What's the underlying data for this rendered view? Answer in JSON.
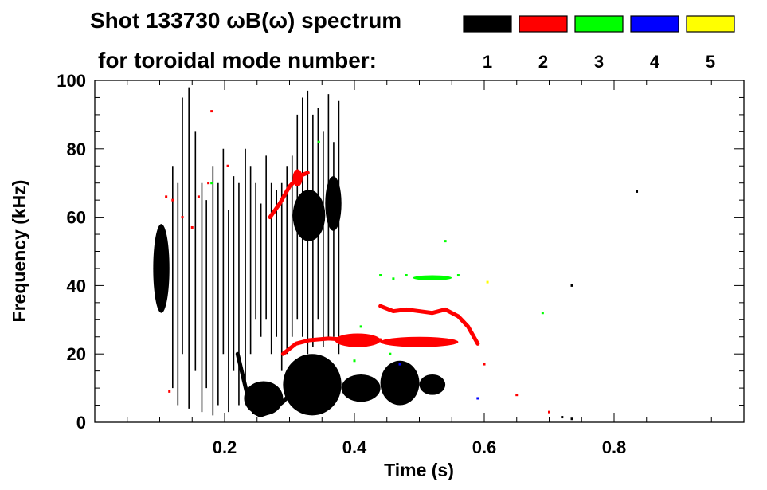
{
  "chart_data": {
    "type": "heatmap",
    "title": "Shot 133730 ωB(ω) spectrum",
    "legend_caption": "for toroidal mode number:",
    "xlabel": "Time (s)",
    "ylabel": "Frequency (kHz)",
    "xlim": [
      0.0,
      1.0
    ],
    "ylim": [
      0,
      100
    ],
    "x_ticks": [
      {
        "value": 0.2,
        "label": "0.2"
      },
      {
        "value": 0.4,
        "label": "0.4"
      },
      {
        "value": 0.6,
        "label": "0.6"
      },
      {
        "value": 0.8,
        "label": "0.8"
      }
    ],
    "y_ticks": [
      {
        "value": 0,
        "label": "0"
      },
      {
        "value": 20,
        "label": "20"
      },
      {
        "value": 40,
        "label": "40"
      },
      {
        "value": 60,
        "label": "60"
      },
      {
        "value": 80,
        "label": "80"
      },
      {
        "value": 100,
        "label": "100"
      }
    ],
    "legend": [
      {
        "label": "1",
        "color": "#000000"
      },
      {
        "label": "2",
        "color": "#ff0000"
      },
      {
        "label": "3",
        "color": "#00ff00"
      },
      {
        "label": "4",
        "color": "#0000ff"
      },
      {
        "label": "5",
        "color": "#ffff00"
      }
    ],
    "legend_placement": "top-right",
    "grid": false,
    "series": [
      {
        "label": "1",
        "color": "#000000",
        "blobs": [
          {
            "t0": 0.09,
            "t1": 0.115,
            "f0": 32,
            "f1": 58
          },
          {
            "t0": 0.095,
            "t1": 0.108,
            "f0": 38,
            "f1": 48
          },
          {
            "t0": 0.23,
            "t1": 0.29,
            "f0": 2,
            "f1": 12
          },
          {
            "t0": 0.29,
            "t1": 0.38,
            "f0": 2,
            "f1": 20
          },
          {
            "t0": 0.38,
            "t1": 0.44,
            "f0": 6,
            "f1": 14
          },
          {
            "t0": 0.44,
            "t1": 0.5,
            "f0": 5,
            "f1": 18
          },
          {
            "t0": 0.5,
            "t1": 0.54,
            "f0": 8,
            "f1": 14
          },
          {
            "t0": 0.305,
            "t1": 0.355,
            "f0": 53,
            "f1": 68
          },
          {
            "t0": 0.355,
            "t1": 0.38,
            "f0": 56,
            "f1": 72
          }
        ],
        "lines": [
          {
            "t": [
              0.22,
              0.235,
              0.245,
              0.255,
              0.27,
              0.29,
              0.31
            ],
            "f": [
              20,
              8,
              3,
              2,
              3,
              6,
              10
            ]
          }
        ],
        "streaks": [
          {
            "t": 0.12,
            "f0": 10,
            "f1": 75
          },
          {
            "t": 0.128,
            "f0": 5,
            "f1": 70
          },
          {
            "t": 0.135,
            "f0": 20,
            "f1": 95
          },
          {
            "t": 0.145,
            "f0": 4,
            "f1": 98
          },
          {
            "t": 0.155,
            "f0": 15,
            "f1": 85
          },
          {
            "t": 0.165,
            "f0": 3,
            "f1": 70
          },
          {
            "t": 0.172,
            "f0": 10,
            "f1": 65
          },
          {
            "t": 0.182,
            "f0": 2,
            "f1": 75
          },
          {
            "t": 0.19,
            "f0": 5,
            "f1": 70
          },
          {
            "t": 0.198,
            "f0": 20,
            "f1": 80
          },
          {
            "t": 0.206,
            "f0": 3,
            "f1": 62
          },
          {
            "t": 0.214,
            "f0": 15,
            "f1": 72
          },
          {
            "t": 0.222,
            "f0": 5,
            "f1": 70
          },
          {
            "t": 0.232,
            "f0": 10,
            "f1": 80
          },
          {
            "t": 0.24,
            "f0": 20,
            "f1": 75
          },
          {
            "t": 0.248,
            "f0": 30,
            "f1": 70
          },
          {
            "t": 0.256,
            "f0": 25,
            "f1": 64
          },
          {
            "t": 0.264,
            "f0": 30,
            "f1": 78
          },
          {
            "t": 0.272,
            "f0": 20,
            "f1": 70
          },
          {
            "t": 0.28,
            "f0": 25,
            "f1": 68
          },
          {
            "t": 0.288,
            "f0": 15,
            "f1": 70
          },
          {
            "t": 0.296,
            "f0": 20,
            "f1": 75
          },
          {
            "t": 0.304,
            "f0": 25,
            "f1": 78
          },
          {
            "t": 0.312,
            "f0": 30,
            "f1": 90
          },
          {
            "t": 0.32,
            "f0": 25,
            "f1": 95
          },
          {
            "t": 0.328,
            "f0": 20,
            "f1": 97
          },
          {
            "t": 0.336,
            "f0": 22,
            "f1": 90
          },
          {
            "t": 0.344,
            "f0": 30,
            "f1": 92
          },
          {
            "t": 0.352,
            "f0": 22,
            "f1": 85
          },
          {
            "t": 0.36,
            "f0": 24,
            "f1": 96
          },
          {
            "t": 0.368,
            "f0": 25,
            "f1": 82
          },
          {
            "t": 0.376,
            "f0": 20,
            "f1": 94
          }
        ],
        "specks": [
          {
            "t": 0.72,
            "f": 1.5
          },
          {
            "t": 0.735,
            "f": 1
          },
          {
            "t": 0.835,
            "f": 67.5
          },
          {
            "t": 0.735,
            "f": 40
          }
        ]
      },
      {
        "label": "2",
        "color": "#ff0000",
        "blobs": [
          {
            "t0": 0.305,
            "t1": 0.32,
            "f0": 69,
            "f1": 74
          },
          {
            "t0": 0.37,
            "t1": 0.44,
            "f0": 22,
            "f1": 26
          },
          {
            "t0": 0.44,
            "t1": 0.56,
            "f0": 22,
            "f1": 25
          }
        ],
        "lines": [
          {
            "t": [
              0.27,
              0.285,
              0.3,
              0.315,
              0.328
            ],
            "f": [
              60,
              64,
              69,
              72,
              73
            ]
          },
          {
            "t": [
              0.44,
              0.46,
              0.48,
              0.5,
              0.52,
              0.54,
              0.56,
              0.575,
              0.59
            ],
            "f": [
              34,
              32.5,
              33,
              32.5,
              32,
              33,
              31,
              28,
              23
            ]
          },
          {
            "t": [
              0.29,
              0.31,
              0.33,
              0.36,
              0.4,
              0.44
            ],
            "f": [
              20,
              23,
              24,
              24.5,
              24,
              24
            ]
          }
        ],
        "specks": [
          {
            "t": 0.11,
            "f": 66
          },
          {
            "t": 0.12,
            "f": 65
          },
          {
            "t": 0.135,
            "f": 60
          },
          {
            "t": 0.15,
            "f": 57
          },
          {
            "t": 0.16,
            "f": 66
          },
          {
            "t": 0.175,
            "f": 70
          },
          {
            "t": 0.18,
            "f": 91
          },
          {
            "t": 0.205,
            "f": 75
          },
          {
            "t": 0.115,
            "f": 9
          },
          {
            "t": 0.6,
            "f": 17
          },
          {
            "t": 0.65,
            "f": 8
          },
          {
            "t": 0.7,
            "f": 3
          }
        ]
      },
      {
        "label": "3",
        "color": "#00ff00",
        "blobs": [
          {
            "t0": 0.49,
            "t1": 0.55,
            "f0": 41.5,
            "f1": 43
          }
        ],
        "lines": [],
        "specks": [
          {
            "t": 0.44,
            "f": 43
          },
          {
            "t": 0.46,
            "f": 42
          },
          {
            "t": 0.48,
            "f": 43
          },
          {
            "t": 0.4,
            "f": 18
          },
          {
            "t": 0.41,
            "f": 28
          },
          {
            "t": 0.455,
            "f": 20
          },
          {
            "t": 0.345,
            "f": 82
          },
          {
            "t": 0.54,
            "f": 53
          },
          {
            "t": 0.56,
            "f": 43
          },
          {
            "t": 0.69,
            "f": 32
          },
          {
            "t": 0.18,
            "f": 70
          }
        ]
      },
      {
        "label": "4",
        "color": "#0000ff",
        "blobs": [],
        "lines": [],
        "specks": [
          {
            "t": 0.59,
            "f": 7
          },
          {
            "t": 0.47,
            "f": 17
          }
        ]
      },
      {
        "label": "5",
        "color": "#ffff00",
        "blobs": [],
        "lines": [],
        "specks": [
          {
            "t": 0.605,
            "f": 41
          }
        ]
      }
    ]
  }
}
